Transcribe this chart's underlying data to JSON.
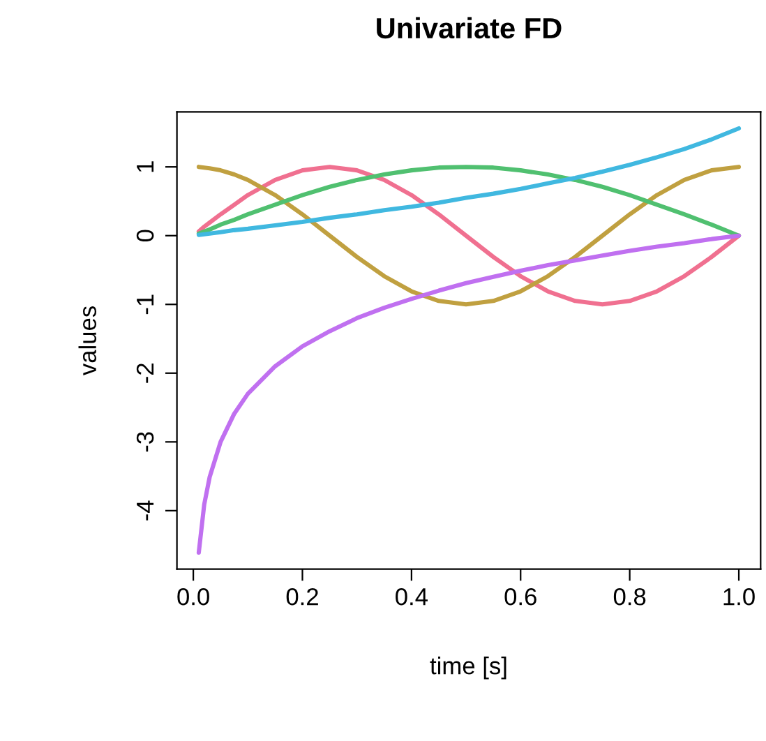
{
  "chart_data": {
    "type": "line",
    "title": "Univariate FD",
    "xlabel": "time [s]",
    "ylabel": "values",
    "x": [
      0.01,
      0.02,
      0.03,
      0.05,
      0.075,
      0.1,
      0.15,
      0.2,
      0.25,
      0.3,
      0.35,
      0.4,
      0.45,
      0.5,
      0.55,
      0.6,
      0.65,
      0.7,
      0.75,
      0.8,
      0.85,
      0.9,
      0.95,
      1.0
    ],
    "series": [
      {
        "color": "#f07090",
        "values": [
          0.06,
          0.13,
          0.19,
          0.31,
          0.45,
          0.59,
          0.81,
          0.95,
          1.0,
          0.95,
          0.81,
          0.59,
          0.31,
          0,
          -0.31,
          -0.59,
          -0.81,
          -0.95,
          -1.0,
          -0.95,
          -0.81,
          -0.59,
          -0.31,
          0
        ]
      },
      {
        "color": "#c0a040",
        "values": [
          1.0,
          0.99,
          0.98,
          0.95,
          0.89,
          0.81,
          0.59,
          0.31,
          0,
          -0.31,
          -0.59,
          -0.81,
          -0.95,
          -1.0,
          -0.95,
          -0.81,
          -0.59,
          -0.31,
          0,
          0.31,
          0.59,
          0.81,
          0.95,
          1.0
        ]
      },
      {
        "color": "#50c070",
        "values": [
          0.03,
          0.06,
          0.09,
          0.16,
          0.23,
          0.31,
          0.45,
          0.59,
          0.71,
          0.81,
          0.89,
          0.95,
          0.99,
          1.0,
          0.99,
          0.95,
          0.89,
          0.81,
          0.71,
          0.59,
          0.45,
          0.31,
          0.16,
          0
        ]
      },
      {
        "color": "#40b8e0",
        "values": [
          0.01,
          0.02,
          0.03,
          0.05,
          0.08,
          0.1,
          0.15,
          0.2,
          0.26,
          0.31,
          0.37,
          0.42,
          0.48,
          0.55,
          0.61,
          0.68,
          0.76,
          0.84,
          0.93,
          1.03,
          1.14,
          1.26,
          1.4,
          1.56
        ]
      },
      {
        "color": "#c070f0",
        "values": [
          -4.61,
          -3.91,
          -3.51,
          -3.0,
          -2.59,
          -2.3,
          -1.9,
          -1.61,
          -1.39,
          -1.2,
          -1.05,
          -0.92,
          -0.8,
          -0.69,
          -0.6,
          -0.51,
          -0.43,
          -0.36,
          -0.29,
          -0.22,
          -0.16,
          -0.11,
          -0.05,
          0
        ]
      }
    ],
    "xlim": [
      -0.03,
      1.04
    ],
    "ylim": [
      -4.85,
      1.8
    ],
    "xticks": [
      {
        "value": 0,
        "label": "0.0"
      },
      0.2,
      0.4,
      0.6,
      0.8,
      {
        "value": 1,
        "label": "1.0"
      }
    ],
    "yticks": [
      -4,
      -3,
      -2,
      -1,
      0,
      1
    ],
    "grid": false,
    "legend": false,
    "marker": "none",
    "line_style": "solid"
  }
}
